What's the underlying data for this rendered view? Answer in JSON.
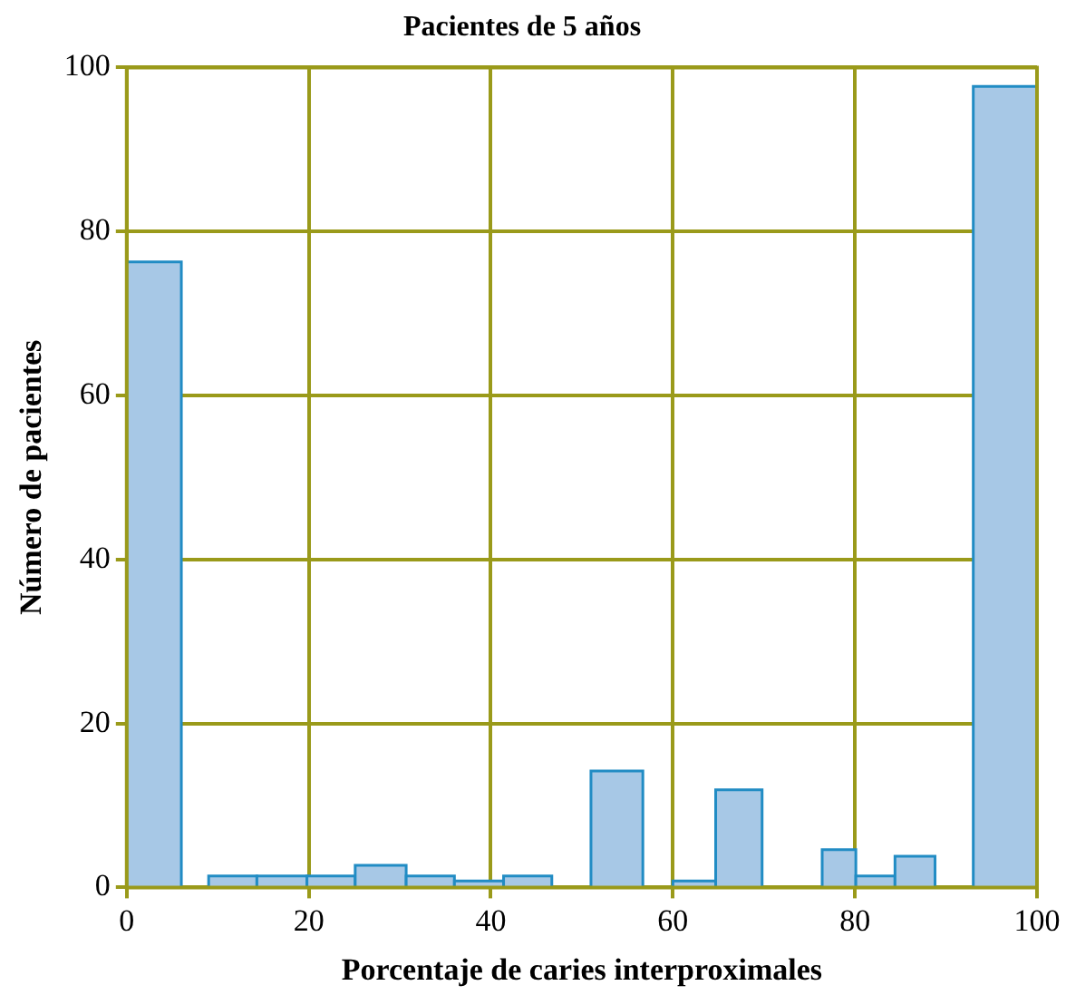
{
  "chart_data": {
    "type": "histogram",
    "title": "Pacientes de 5 años",
    "xlabel": "Porcentaje de caries interproximales",
    "ylabel": "Número de pacientes",
    "bins": [
      0,
      6,
      9,
      14.3,
      19.8,
      25.1,
      30.7,
      36,
      41.4,
      46.7,
      51,
      56.7,
      60,
      64.7,
      69.8,
      76.4,
      80.1,
      84.4,
      88.8,
      93,
      100
    ],
    "values": [
      76.3,
      0,
      1.4,
      1.4,
      1.4,
      2.7,
      1.4,
      0.8,
      1.4,
      0,
      14.2,
      0,
      0.8,
      11.9,
      0,
      4.6,
      1.4,
      3.8,
      0,
      97.7
    ],
    "color": "#a7c8e6",
    "xlim": [
      0,
      100
    ],
    "xticks": [
      0,
      20,
      40,
      60,
      80,
      100
    ],
    "ylim": [
      0,
      100
    ],
    "yticks": [
      0,
      20,
      40,
      60,
      80,
      100
    ],
    "grid": true,
    "legend": false
  }
}
